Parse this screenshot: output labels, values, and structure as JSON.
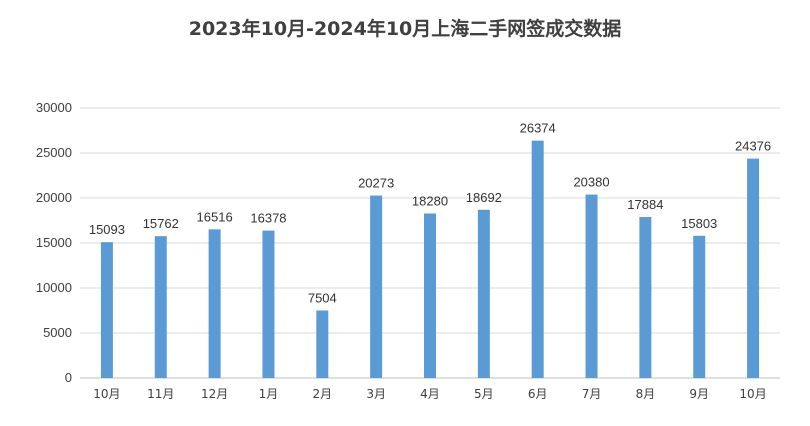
{
  "chart_data": {
    "type": "bar",
    "title": "2023年10月-2024年10月上海二手网签成交数据",
    "xlabel": "",
    "ylabel": "",
    "categories": [
      "10月",
      "11月",
      "12月",
      "1月",
      "2月",
      "3月",
      "4月",
      "5月",
      "6月",
      "7月",
      "8月",
      "9月",
      "10月"
    ],
    "values": [
      15093,
      15762,
      16516,
      16378,
      7504,
      20273,
      18280,
      18692,
      26374,
      20380,
      17884,
      15803,
      24376
    ],
    "ylim": [
      0,
      30000
    ],
    "yticks": [
      0,
      5000,
      10000,
      15000,
      20000,
      25000,
      30000
    ],
    "grid": true,
    "legend": "none",
    "bar_color": "#5B9BD5"
  }
}
